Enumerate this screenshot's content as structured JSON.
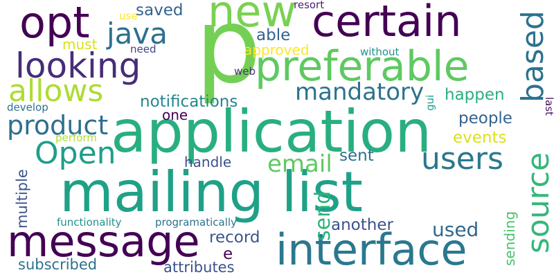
{
  "word_cloud": {
    "words": [
      {
        "key": "p",
        "text": "p",
        "color": "#74d055"
      },
      {
        "key": "application",
        "text": "application",
        "color": "#29af7f"
      },
      {
        "key": "mailing_list",
        "text": "mailing list",
        "color": "#1fa187"
      },
      {
        "key": "new",
        "text": "new",
        "color": "#7ad151"
      },
      {
        "key": "certain",
        "text": "certain",
        "color": "#440154"
      },
      {
        "key": "opt",
        "text": "opt",
        "color": "#440154"
      },
      {
        "key": "preferable",
        "text": "preferable",
        "color": "#5ec962"
      },
      {
        "key": "looking",
        "text": "looking",
        "color": "#472c7a"
      },
      {
        "key": "allows",
        "text": "allows",
        "color": "#addc30"
      },
      {
        "key": "java",
        "text": "java",
        "color": "#2d708e"
      },
      {
        "key": "based",
        "text": "based",
        "color": "#2c728e"
      },
      {
        "key": "message",
        "text": "message",
        "color": "#440154"
      },
      {
        "key": "interface",
        "text": "interface",
        "color": "#2a788e"
      },
      {
        "key": "source",
        "text": "source",
        "color": "#35b779"
      },
      {
        "key": "users",
        "text": "users",
        "color": "#2a788e"
      },
      {
        "key": "product",
        "text": "product",
        "color": "#2d708e"
      },
      {
        "key": "open",
        "text": "Open",
        "color": "#1f9e89"
      },
      {
        "key": "mandatory",
        "text": "mandatory",
        "color": "#2c728e"
      },
      {
        "key": "email",
        "text": "email",
        "color": "#5ec962"
      },
      {
        "key": "send",
        "text": "send",
        "color": "#2db27d"
      },
      {
        "key": "saved",
        "text": "saved",
        "color": "#33638d"
      },
      {
        "key": "able",
        "text": "able",
        "color": "#33638d"
      },
      {
        "key": "approved",
        "text": "approved",
        "color": "#fde725"
      },
      {
        "key": "must",
        "text": "must",
        "color": "#d8e219"
      },
      {
        "key": "notifications",
        "text": "notifications",
        "color": "#25848e"
      },
      {
        "key": "happen",
        "text": "happen",
        "color": "#29af7f"
      },
      {
        "key": "people",
        "text": "people",
        "color": "#33638d"
      },
      {
        "key": "events",
        "text": "events",
        "color": "#d8e219"
      },
      {
        "key": "one",
        "text": "one",
        "color": "#440154"
      },
      {
        "key": "handle",
        "text": "handle",
        "color": "#3b528b"
      },
      {
        "key": "sent",
        "text": "sent",
        "color": "#2d708e"
      },
      {
        "key": "used",
        "text": "used",
        "color": "#31688e"
      },
      {
        "key": "another",
        "text": "another",
        "color": "#3b528b"
      },
      {
        "key": "record",
        "text": "record",
        "color": "#39568c"
      },
      {
        "key": "sending",
        "text": "sending",
        "color": "#4ac16d"
      },
      {
        "key": "e",
        "text": "e",
        "color": "#440154"
      },
      {
        "key": "subscribed",
        "text": "subscribed",
        "color": "#2c728e"
      },
      {
        "key": "attributes",
        "text": "attributes",
        "color": "#3b528b"
      },
      {
        "key": "multiple",
        "text": "multiple",
        "color": "#3b528b"
      },
      {
        "key": "functionality",
        "text": "functionality",
        "color": "#21918c"
      },
      {
        "key": "programatically",
        "text": "programatically",
        "color": "#2c728e"
      },
      {
        "key": "perform",
        "text": "perform",
        "color": "#addc30"
      },
      {
        "key": "develop",
        "text": "develop",
        "color": "#2d708e"
      },
      {
        "key": "use",
        "text": "use",
        "color": "#fde725"
      },
      {
        "key": "need",
        "text": "need",
        "color": "#414487"
      },
      {
        "key": "resort",
        "text": "resort",
        "color": "#481f70"
      },
      {
        "key": "without",
        "text": "without",
        "color": "#21918c"
      },
      {
        "key": "web",
        "text": "web",
        "color": "#46337e"
      },
      {
        "key": "gui",
        "text": "gui",
        "color": "#1f9e89"
      },
      {
        "key": "last",
        "text": "last",
        "color": "#471164"
      }
    ]
  }
}
